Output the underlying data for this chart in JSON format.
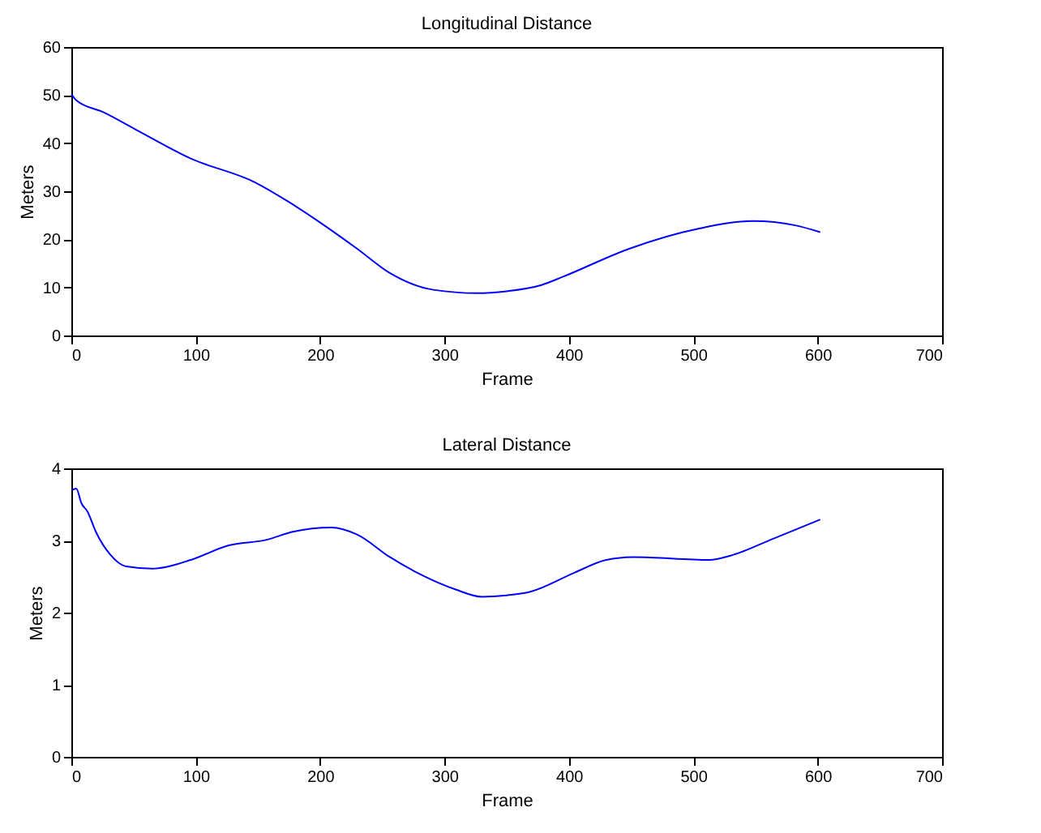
{
  "chart_data": [
    {
      "type": "line",
      "title": "Longitudinal Distance",
      "xlabel": "Frame",
      "ylabel": "Meters",
      "xlim": [
        0,
        700
      ],
      "xticks": [
        0,
        100,
        200,
        300,
        400,
        500,
        600,
        700
      ],
      "ylim": [
        0,
        60
      ],
      "yticks": [
        0,
        10,
        20,
        30,
        40,
        50,
        60
      ],
      "grid": false,
      "series": [
        {
          "color": "#0000ff",
          "x": [
            0,
            4,
            26,
            52,
            96,
            148,
            174,
            200,
            230,
            256,
            291,
            326,
            350,
            378,
            395,
            448,
            504,
            548,
            582,
            602
          ],
          "values": [
            50.2,
            48.9,
            46.4,
            42.8,
            36.8,
            31.8,
            27.9,
            23.5,
            18.0,
            13.0,
            9.5,
            8.8,
            9.2,
            10.5,
            12.2,
            18.0,
            22.2,
            23.8,
            22.9,
            21.5
          ]
        }
      ]
    },
    {
      "type": "line",
      "title": "Lateral Distance",
      "xlabel": "Frame",
      "ylabel": "Meters",
      "xlim": [
        0,
        700
      ],
      "xticks": [
        0,
        100,
        200,
        300,
        400,
        500,
        600,
        700
      ],
      "ylim": [
        0,
        4
      ],
      "yticks": [
        0,
        1,
        2,
        3,
        4
      ],
      "grid": false,
      "series": [
        {
          "color": "#0000ff",
          "x": [
            0.5,
            4,
            8,
            13,
            20,
            31,
            44,
            65,
            96,
            126,
            157,
            178,
            209,
            230,
            256,
            283,
            309,
            330,
            350,
            369,
            404,
            430,
            452,
            513,
            530,
            565,
            602
          ],
          "values": [
            3.7,
            3.72,
            3.52,
            3.4,
            3.11,
            2.81,
            2.64,
            2.61,
            2.73,
            2.93,
            3.01,
            3.12,
            3.18,
            3.08,
            2.77,
            2.51,
            2.32,
            2.22,
            2.24,
            2.29,
            2.55,
            2.73,
            2.77,
            2.73,
            2.79,
            3.03,
            3.29
          ]
        }
      ]
    }
  ]
}
